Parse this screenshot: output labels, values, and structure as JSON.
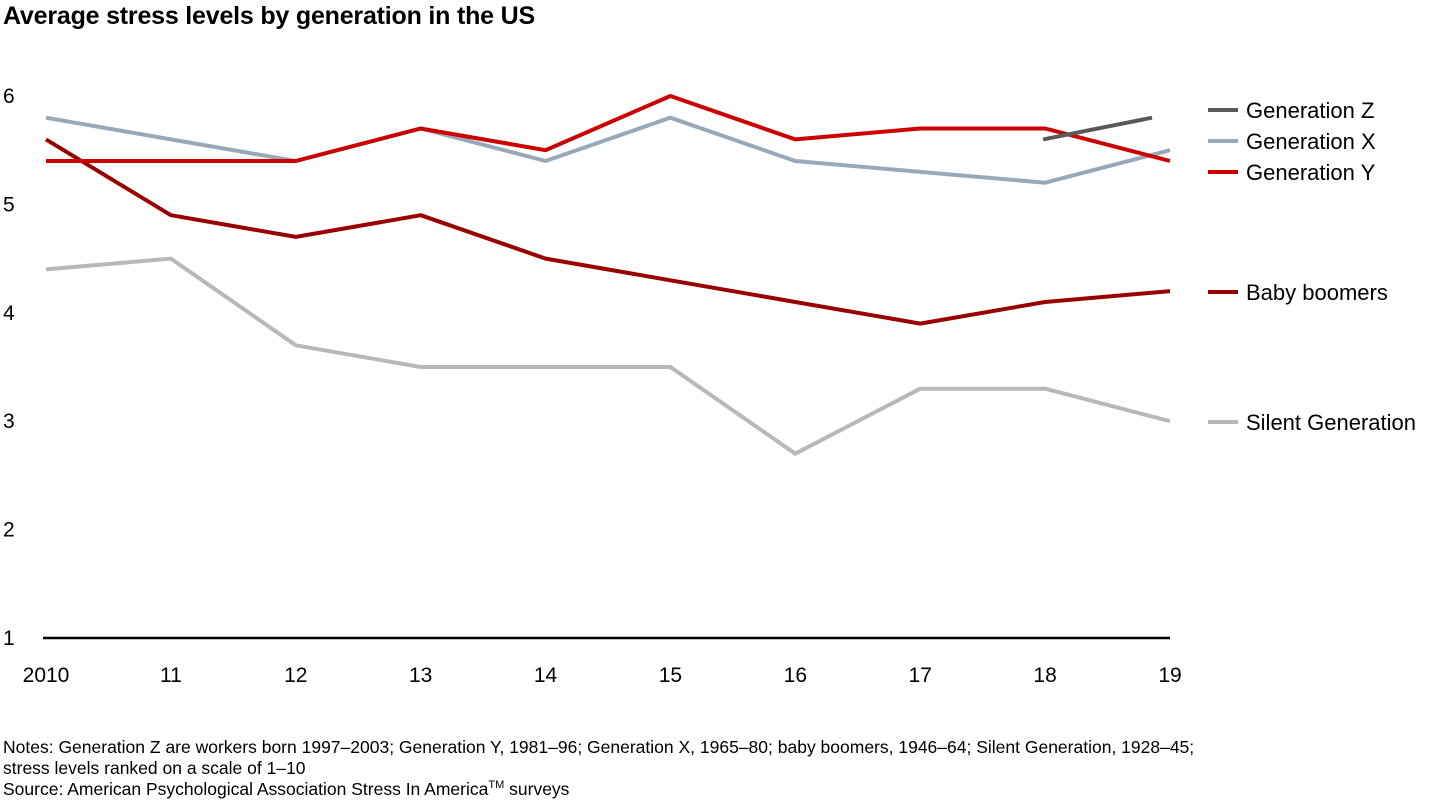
{
  "title": "Average stress levels by generation in the US",
  "notes": {
    "line1": "Notes: Generation Z are workers born 1997–2003; Generation Y, 1981–96; Generation X, 1965–80; baby boomers, 1946–64; Silent Generation, 1928–45;",
    "line2": "stress levels ranked on a scale of 1–10",
    "source_prefix": "Source: American Psychological Association Stress In America",
    "source_tm": "TM",
    "source_suffix": " surveys"
  },
  "chart_data": {
    "type": "line",
    "title": "Average stress levels by generation in the US",
    "xlabel": "",
    "ylabel": "",
    "x": [
      2010,
      2011,
      2012,
      2013,
      2014,
      2015,
      2016,
      2017,
      2018,
      2019
    ],
    "x_tick_labels": [
      "2010",
      "11",
      "12",
      "13",
      "14",
      "15",
      "16",
      "17",
      "18",
      "19"
    ],
    "y_ticks": [
      1,
      2,
      3,
      4,
      5,
      6
    ],
    "ylim": [
      1,
      6
    ],
    "grid": false,
    "legend_placement": "right",
    "series": [
      {
        "name": "Generation Z",
        "color": "#595959",
        "x": [
          2018,
          2019
        ],
        "values": [
          5.6,
          5.8
        ]
      },
      {
        "name": "Generation X",
        "color": "#97A9B9",
        "x": [
          2010,
          2011,
          2012,
          2013,
          2014,
          2015,
          2016,
          2017,
          2018,
          2019
        ],
        "values": [
          5.8,
          5.6,
          5.4,
          5.7,
          5.4,
          5.8,
          5.4,
          5.3,
          5.2,
          5.5
        ]
      },
      {
        "name": "Generation Y",
        "color": "#CC0000",
        "x": [
          2010,
          2011,
          2012,
          2013,
          2014,
          2015,
          2016,
          2017,
          2018,
          2019
        ],
        "values": [
          5.4,
          5.4,
          5.4,
          5.7,
          5.5,
          6.0,
          5.6,
          5.7,
          5.7,
          5.4
        ]
      },
      {
        "name": "Baby boomers",
        "color": "#990000",
        "x": [
          2010,
          2011,
          2012,
          2013,
          2014,
          2015,
          2016,
          2017,
          2018,
          2019
        ],
        "values": [
          5.6,
          4.9,
          4.7,
          4.9,
          4.5,
          4.3,
          4.1,
          3.9,
          4.1,
          4.2
        ]
      },
      {
        "name": "Silent Generation",
        "color": "#B8B8B8",
        "x": [
          2010,
          2011,
          2012,
          2013,
          2014,
          2015,
          2016,
          2017,
          2018,
          2019
        ],
        "values": [
          4.4,
          4.5,
          3.7,
          3.5,
          3.5,
          3.5,
          2.7,
          3.3,
          3.3,
          3.0
        ]
      }
    ]
  }
}
